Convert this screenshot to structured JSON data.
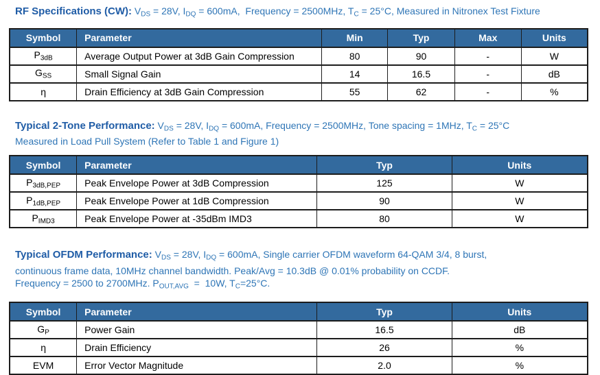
{
  "colors": {
    "header_bg": "#336A9E",
    "header_text": "#ffffff",
    "heading_bold": "#1F5CA6",
    "heading_text": "#2E75B6",
    "border_color": "#1C1C1C",
    "body_text": "#000000",
    "page_bg": "#ffffff"
  },
  "sections": [
    {
      "name": "rf-specifications-cw",
      "heading": {
        "lines": [
          [
            {
              "text": "RF Specifications (CW):",
              "bold": true
            },
            {
              "text": " V"
            },
            {
              "text": "DS",
              "sub": true
            },
            {
              "text": " = 28V, I"
            },
            {
              "text": "DQ",
              "sub": true
            },
            {
              "text": " = 600mA,  Frequency = 2500MHz, T"
            },
            {
              "text": "C",
              "sub": true
            },
            {
              "text": " = 25°C, Measured in Nitronex Test Fixture"
            }
          ]
        ]
      },
      "table": {
        "headers": [
          "Symbol",
          "Parameter",
          "Min",
          "Typ",
          "Max",
          "Units"
        ],
        "col_widths": [
          "11.6%",
          "42.4%",
          "11.4%",
          "11.6%",
          "11.5%",
          "11.5%"
        ],
        "rows": [
          {
            "cells": [
              [
                {
                  "text": "P"
                },
                {
                  "text": "3dB",
                  "sub": true
                }
              ],
              "Average Output Power at 3dB Gain Compression",
              "80",
              "90",
              "-",
              "W"
            ]
          },
          {
            "cells": [
              [
                {
                  "text": "G"
                },
                {
                  "text": "SS",
                  "sub": true
                }
              ],
              "Small Signal Gain",
              "14",
              "16.5",
              "-",
              "dB"
            ]
          },
          {
            "cells": [
              "η",
              "Drain Efficiency at 3dB Gain Compression",
              "55",
              "62",
              "-",
              "%"
            ]
          }
        ]
      }
    },
    {
      "name": "typical-2-tone-performance",
      "heading": {
        "lines": [
          [
            {
              "text": "Typical 2-Tone Performance:",
              "bold": true
            },
            {
              "text": " V"
            },
            {
              "text": "DS",
              "sub": true
            },
            {
              "text": " = 28V, I"
            },
            {
              "text": "DQ",
              "sub": true
            },
            {
              "text": " = 600mA, Frequency = 2500MHz, Tone spacing = 1MHz, T"
            },
            {
              "text": "C",
              "sub": true
            },
            {
              "text": " = 25°C"
            }
          ],
          [
            {
              "text": "Measured in Load Pull System (Refer to Table 1 and Figure 1)"
            }
          ]
        ]
      },
      "table": {
        "headers": [
          "Symbol",
          "Parameter",
          "Typ",
          "Units"
        ],
        "col_widths": [
          "11.6%",
          "41.6%",
          "23.3%",
          "23.5%"
        ],
        "rows": [
          {
            "cells": [
              [
                {
                  "text": "P"
                },
                {
                  "text": "3dB,PEP",
                  "sub": true
                }
              ],
              "Peak Envelope Power at 3dB Compression",
              "125",
              "W"
            ]
          },
          {
            "cells": [
              [
                {
                  "text": "P"
                },
                {
                  "text": "1dB,PEP",
                  "sub": true
                }
              ],
              "Peak Envelope Power at 1dB Compression",
              "90",
              "W"
            ]
          },
          {
            "cells": [
              [
                {
                  "text": "P"
                },
                {
                  "text": "IMD3",
                  "sub": true
                }
              ],
              "Peak Envelope Power at -35dBm IMD3",
              "80",
              "W"
            ]
          }
        ]
      }
    },
    {
      "name": "typical-ofdm-performance",
      "heading": {
        "lines": [
          [
            {
              "text": "Typical OFDM Performance:",
              "bold": true
            },
            {
              "text": " V"
            },
            {
              "text": "DS",
              "sub": true
            },
            {
              "text": " = 28V, I"
            },
            {
              "text": "DQ",
              "sub": true
            },
            {
              "text": " = 600mA, Single carrier OFDM waveform 64-QAM 3/4, 8 burst,"
            }
          ],
          [
            {
              "text": "continuous frame data, 10MHz channel bandwidth. Peak/Avg = 10.3dB @ 0.01% probability on CCDF."
            }
          ],
          [
            {
              "text": "Frequency = 2500 to 2700MHz. P"
            },
            {
              "text": "OUT,AVG",
              "sub": true
            },
            {
              "text": "  =  10W, T"
            },
            {
              "text": "C",
              "sub": true
            },
            {
              "text": "=25°C."
            }
          ]
        ]
      },
      "table": {
        "headers": [
          "Symbol",
          "Parameter",
          "Typ",
          "Units"
        ],
        "col_widths": [
          "11.6%",
          "41.6%",
          "23.3%",
          "23.5%"
        ],
        "rows": [
          {
            "cells": [
              [
                {
                  "text": "G"
                },
                {
                  "text": "P",
                  "sub": true
                }
              ],
              "Power Gain",
              "16.5",
              "dB"
            ]
          },
          {
            "cells": [
              "η",
              "Drain Efficiency",
              "26",
              "%"
            ]
          },
          {
            "cells": [
              "EVM",
              "Error Vector Magnitude",
              "2.0",
              "%"
            ]
          }
        ]
      }
    }
  ]
}
